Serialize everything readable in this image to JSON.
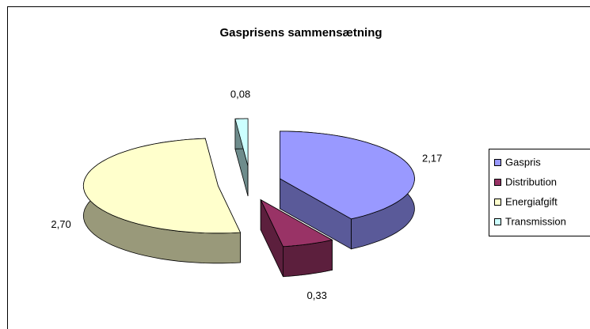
{
  "chart_data": {
    "type": "pie",
    "title": "Gasprisens sammensætning",
    "categories": [
      "Gaspris",
      "Distribution",
      "Energiafgift",
      "Transmission"
    ],
    "values": [
      2.17,
      0.33,
      2.7,
      0.08
    ],
    "value_labels": [
      "2,17",
      "0,33",
      "2,70",
      "0,08"
    ],
    "colors": [
      "#9999ff",
      "#993366",
      "#ffffcc",
      "#ccffff"
    ],
    "side_colors": [
      "#5a5a99",
      "#5c1f3d",
      "#99997a",
      "#6e8c8c"
    ],
    "legend": "right"
  }
}
